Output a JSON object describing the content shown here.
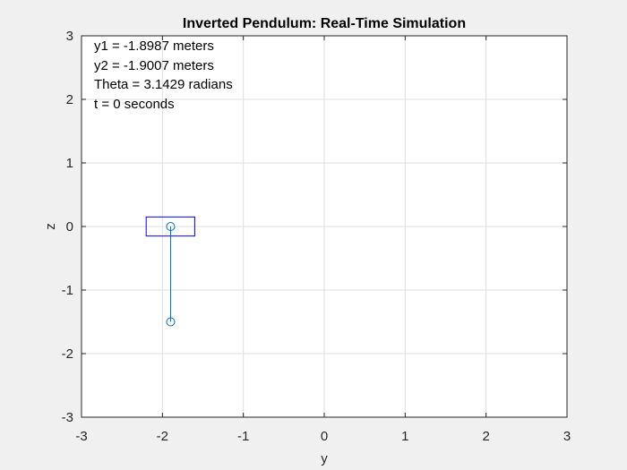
{
  "chart_data": {
    "type": "line",
    "title": "Inverted Pendulum: Real-Time Simulation",
    "xlabel": "y",
    "ylabel": "z",
    "xlim": [
      -3,
      3
    ],
    "ylim": [
      -3,
      3
    ],
    "grid": true,
    "xticks": [
      -3,
      -2,
      -1,
      0,
      1,
      2,
      3
    ],
    "yticks": [
      -3,
      -2,
      -1,
      0,
      1,
      2,
      3
    ],
    "annotations": [
      "y1 = -1.8987 meters",
      "y2 = -1.9007 meters",
      "Theta = 3.1429 radians",
      "t = 0 seconds"
    ],
    "cart": {
      "center_y": -1.9007,
      "center_z": 0,
      "width": 0.6,
      "height": 0.3
    },
    "series": [
      {
        "x": [
          -1.8987,
          -1.8987
        ],
        "y": [
          0,
          -1.5
        ]
      }
    ],
    "markers": [
      {
        "x": -1.8987,
        "y": 0
      },
      {
        "x": -1.8987,
        "y": -1.5
      }
    ]
  },
  "colors": {
    "background": "#f0f0f0",
    "axes": "#ffffff",
    "grid": "#dfdfdf",
    "frame": "#262626",
    "pendulum": "#0072bd",
    "cart": "#0000ff"
  }
}
